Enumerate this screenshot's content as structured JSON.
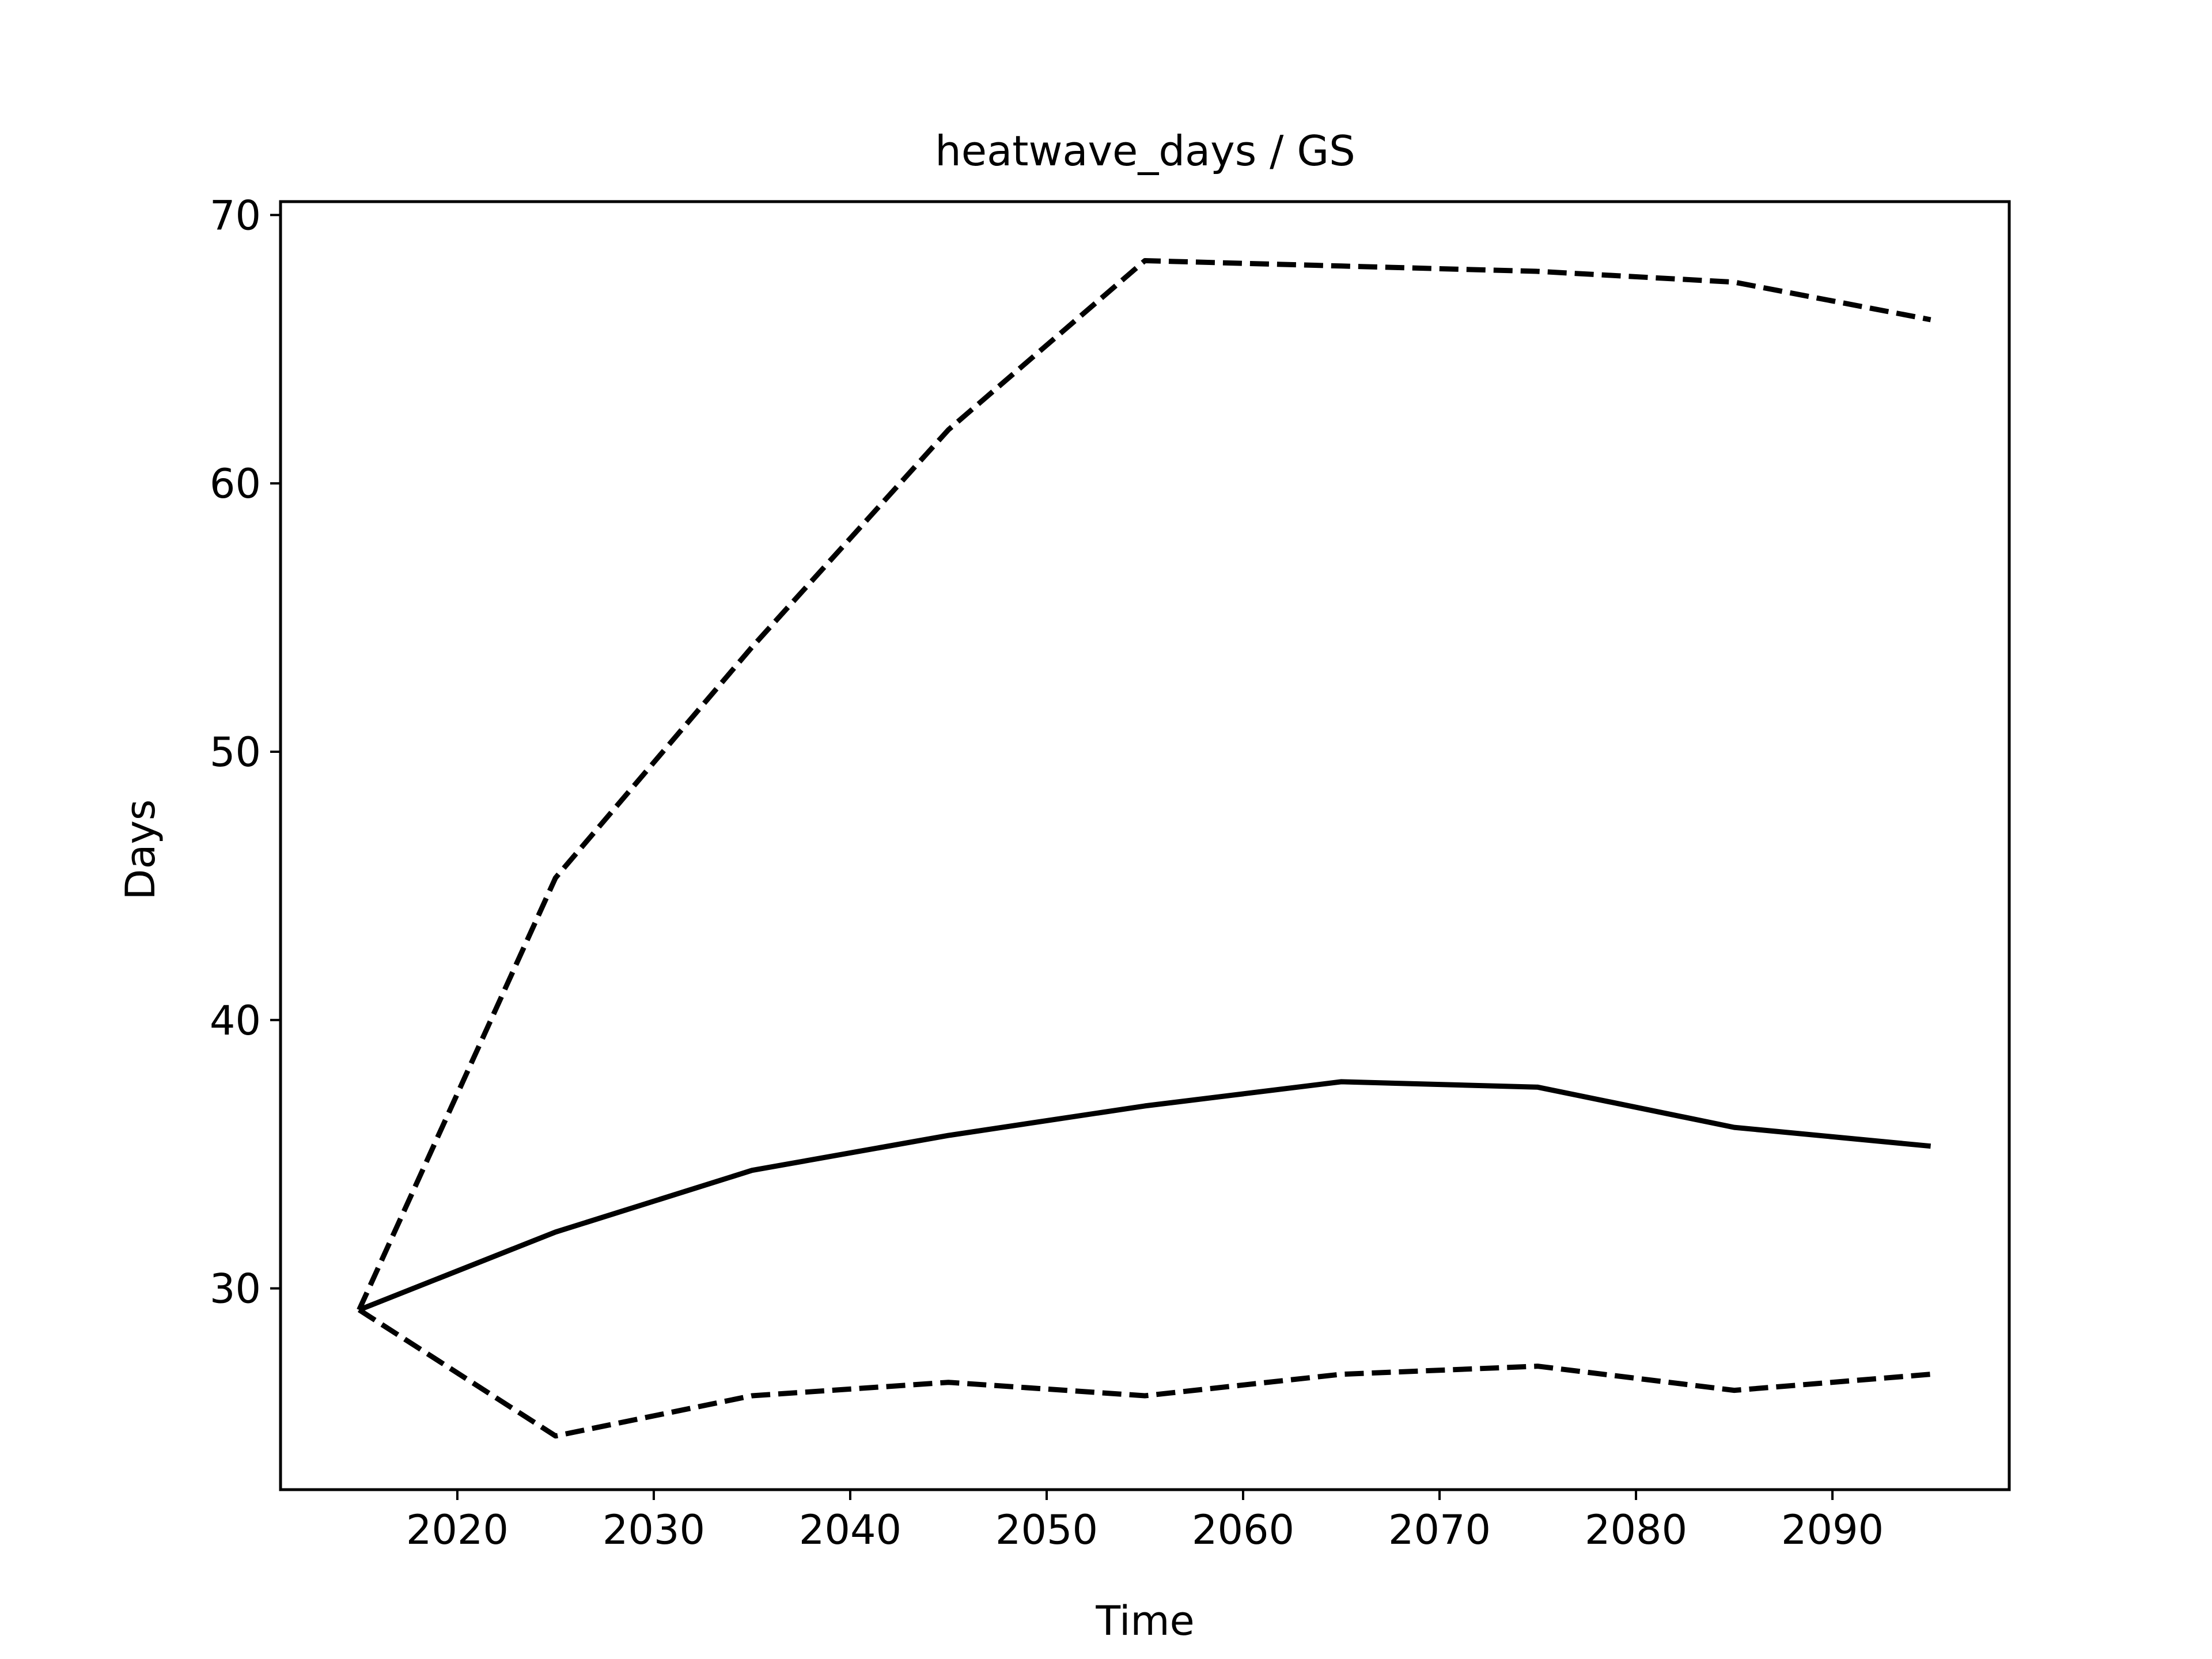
{
  "chart_data": {
    "type": "line",
    "title": "heatwave_days / GS",
    "xlabel": "Time",
    "ylabel": "Days",
    "xlim": [
      2011,
      2099
    ],
    "ylim": [
      22.5,
      70.5
    ],
    "xticks": [
      2020,
      2030,
      2040,
      2050,
      2060,
      2070,
      2080,
      2090
    ],
    "yticks": [
      30,
      40,
      50,
      60,
      70
    ],
    "grid": false,
    "x": [
      2015,
      2025,
      2035,
      2045,
      2055,
      2065,
      2075,
      2085,
      2095
    ],
    "series": [
      {
        "style": "solid",
        "color": "#000000",
        "values": [
          29.2,
          32.1,
          34.4,
          35.7,
          36.8,
          37.7,
          37.5,
          36.0,
          35.3
        ]
      },
      {
        "style": "dashed",
        "color": "#000000",
        "values": [
          29.2,
          45.3,
          53.9,
          62.0,
          68.3,
          68.1,
          67.9,
          67.5,
          66.1
        ]
      },
      {
        "style": "dashed",
        "color": "#000000",
        "values": [
          29.2,
          24.5,
          26.0,
          26.5,
          26.0,
          26.8,
          27.1,
          26.2,
          26.8
        ]
      }
    ]
  }
}
